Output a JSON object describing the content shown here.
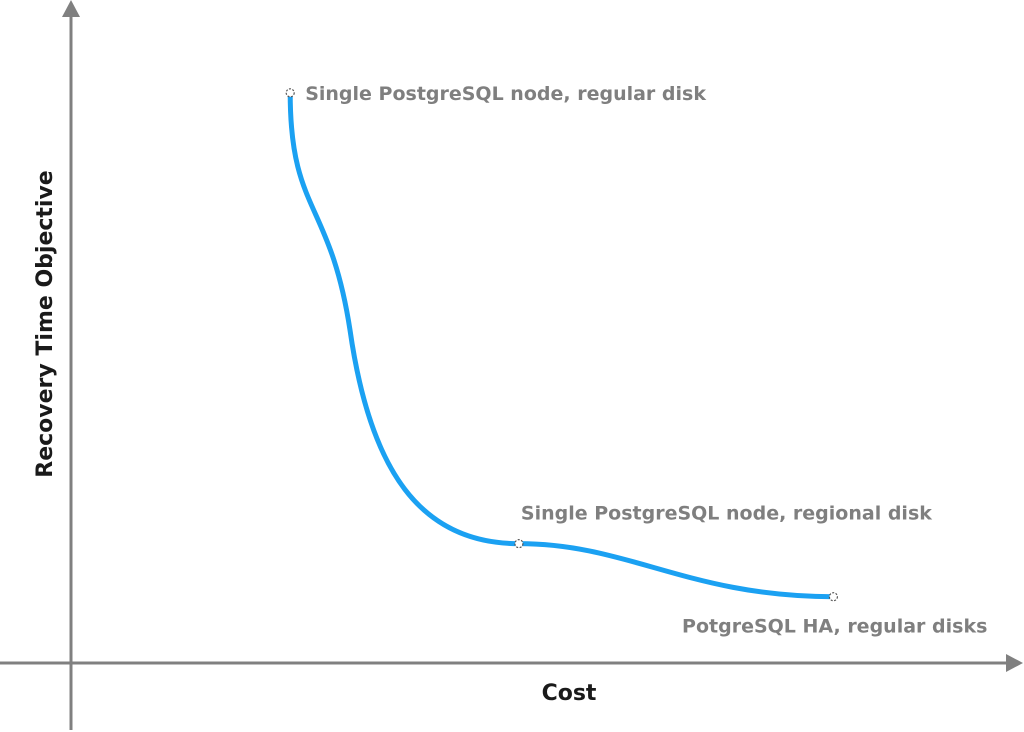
{
  "chart_data": {
    "type": "line",
    "title": "",
    "xlabel": "Cost",
    "ylabel": "Recovery Time Objective",
    "grid": false,
    "curve_color": "#1ba1f2",
    "axis_color": "#808080",
    "label_color": "#7f7f7f",
    "series": [
      {
        "x": [
          0.23,
          0.47,
          0.8
        ],
        "y": [
          0.86,
          0.18,
          0.1
        ]
      }
    ],
    "points": [
      {
        "label": "Single PostgreSQL node, regular disk",
        "x": 0.23,
        "y": 0.86
      },
      {
        "label": "Single PostgreSQL node, regional disk",
        "x": 0.47,
        "y": 0.18
      },
      {
        "label": "PotgreSQL HA, regular disks",
        "x": 0.8,
        "y": 0.1
      }
    ]
  }
}
